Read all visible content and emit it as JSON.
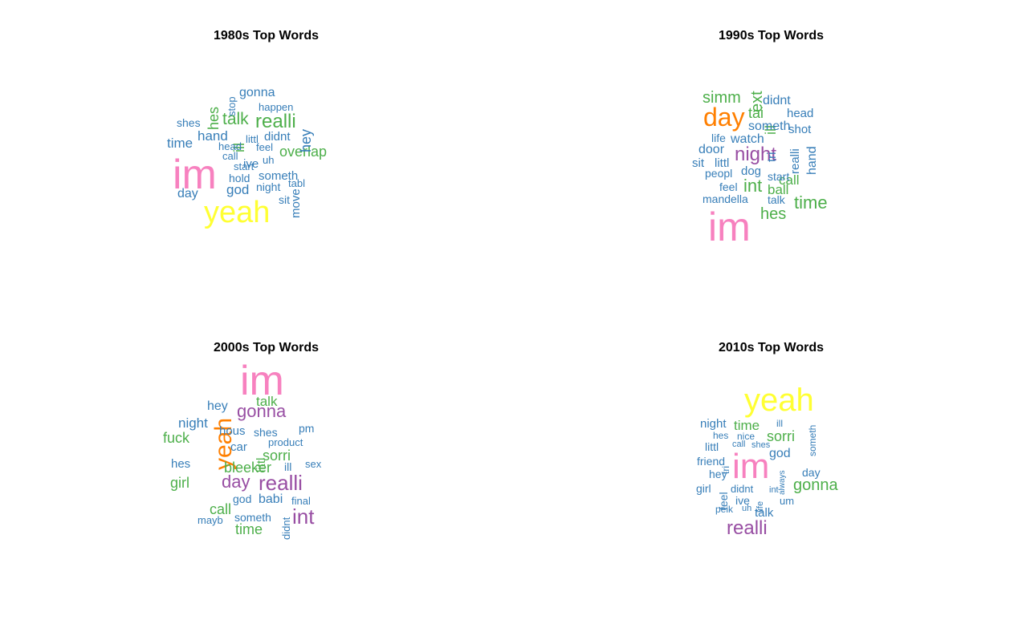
{
  "chart_data": [
    {
      "type": "wordcloud",
      "title": "1980s Top Words",
      "words": [
        {
          "text": "im",
          "freq": 10,
          "color": "#F781BF"
        },
        {
          "text": "yeah",
          "freq": 8,
          "color": "#FFFF33"
        },
        {
          "text": "realli",
          "freq": 5,
          "color": "#4DAF4A"
        },
        {
          "text": "talk",
          "freq": 4,
          "color": "#4DAF4A"
        },
        {
          "text": "overlap",
          "freq": 4,
          "color": "#4DAF4A"
        },
        {
          "text": "hand",
          "freq": 4,
          "color": "#377EB8"
        },
        {
          "text": "time",
          "freq": 4,
          "color": "#377EB8"
        },
        {
          "text": "hes",
          "freq": 4,
          "color": "#4DAF4A"
        },
        {
          "text": "ill",
          "freq": 4,
          "color": "#4DAF4A"
        },
        {
          "text": "hey",
          "freq": 4,
          "color": "#377EB8"
        },
        {
          "text": "god",
          "freq": 4,
          "color": "#377EB8"
        },
        {
          "text": "day",
          "freq": 3,
          "color": "#377EB8"
        },
        {
          "text": "gonna",
          "freq": 3,
          "color": "#377EB8"
        },
        {
          "text": "shes",
          "freq": 3,
          "color": "#377EB8"
        },
        {
          "text": "someth",
          "freq": 3,
          "color": "#377EB8"
        },
        {
          "text": "night",
          "freq": 3,
          "color": "#377EB8"
        },
        {
          "text": "sit",
          "freq": 3,
          "color": "#377EB8"
        },
        {
          "text": "move",
          "freq": 3,
          "color": "#377EB8"
        },
        {
          "text": "didnt",
          "freq": 3,
          "color": "#377EB8"
        },
        {
          "text": "ive",
          "freq": 3,
          "color": "#377EB8"
        },
        {
          "text": "hold",
          "freq": 3,
          "color": "#377EB8"
        },
        {
          "text": "happen",
          "freq": 2,
          "color": "#377EB8"
        },
        {
          "text": "stop",
          "freq": 2,
          "color": "#377EB8"
        },
        {
          "text": "littl",
          "freq": 2,
          "color": "#377EB8"
        },
        {
          "text": "head",
          "freq": 2,
          "color": "#377EB8"
        },
        {
          "text": "feel",
          "freq": 2,
          "color": "#377EB8"
        },
        {
          "text": "call",
          "freq": 2,
          "color": "#377EB8"
        },
        {
          "text": "uh",
          "freq": 2,
          "color": "#377EB8"
        },
        {
          "text": "start",
          "freq": 2,
          "color": "#377EB8"
        },
        {
          "text": "tabl",
          "freq": 2,
          "color": "#377EB8"
        }
      ]
    },
    {
      "type": "wordcloud",
      "title": "1990s Top Words",
      "words": [
        {
          "text": "im",
          "freq": 10,
          "color": "#F781BF"
        },
        {
          "text": "day",
          "freq": 6,
          "color": "#FF7F00"
        },
        {
          "text": "night",
          "freq": 5,
          "color": "#984EA3"
        },
        {
          "text": "int",
          "freq": 5,
          "color": "#4DAF4A"
        },
        {
          "text": "time",
          "freq": 4,
          "color": "#4DAF4A"
        },
        {
          "text": "hes",
          "freq": 4,
          "color": "#4DAF4A"
        },
        {
          "text": "simm",
          "freq": 4,
          "color": "#4DAF4A"
        },
        {
          "text": "ext",
          "freq": 4,
          "color": "#4DAF4A"
        },
        {
          "text": "tai",
          "freq": 3,
          "color": "#4DAF4A"
        },
        {
          "text": "ill",
          "freq": 4,
          "color": "#4DAF4A"
        },
        {
          "text": "ball",
          "freq": 3,
          "color": "#4DAF4A"
        },
        {
          "text": "call",
          "freq": 3,
          "color": "#4DAF4A"
        },
        {
          "text": "didnt",
          "freq": 3,
          "color": "#377EB8"
        },
        {
          "text": "head",
          "freq": 2,
          "color": "#377EB8"
        },
        {
          "text": "someth",
          "freq": 3,
          "color": "#377EB8"
        },
        {
          "text": "shot",
          "freq": 2,
          "color": "#377EB8"
        },
        {
          "text": "life",
          "freq": 2,
          "color": "#377EB8"
        },
        {
          "text": "watch",
          "freq": 3,
          "color": "#377EB8"
        },
        {
          "text": "tri",
          "freq": 3,
          "color": "#377EB8"
        },
        {
          "text": "realli",
          "freq": 3,
          "color": "#377EB8"
        },
        {
          "text": "hand",
          "freq": 3,
          "color": "#377EB8"
        },
        {
          "text": "door",
          "freq": 3,
          "color": "#377EB8"
        },
        {
          "text": "sit",
          "freq": 3,
          "color": "#377EB8"
        },
        {
          "text": "littl",
          "freq": 3,
          "color": "#377EB8"
        },
        {
          "text": "peopl",
          "freq": 2,
          "color": "#377EB8"
        },
        {
          "text": "dog",
          "freq": 3,
          "color": "#377EB8"
        },
        {
          "text": "start",
          "freq": 2,
          "color": "#377EB8"
        },
        {
          "text": "feel",
          "freq": 2,
          "color": "#377EB8"
        },
        {
          "text": "mandella",
          "freq": 2,
          "color": "#377EB8"
        },
        {
          "text": "talk",
          "freq": 2,
          "color": "#377EB8"
        }
      ]
    },
    {
      "type": "wordcloud",
      "title": "2000s Top Words",
      "words": [
        {
          "text": "im",
          "freq": 10,
          "color": "#F781BF"
        },
        {
          "text": "yeah",
          "freq": 7,
          "color": "#FF7F00"
        },
        {
          "text": "gonna",
          "freq": 5,
          "color": "#984EA3"
        },
        {
          "text": "realli",
          "freq": 6,
          "color": "#984EA3"
        },
        {
          "text": "day",
          "freq": 5,
          "color": "#984EA3"
        },
        {
          "text": "int",
          "freq": 6,
          "color": "#984EA3"
        },
        {
          "text": "talk",
          "freq": 4,
          "color": "#4DAF4A"
        },
        {
          "text": "fuck",
          "freq": 4,
          "color": "#4DAF4A"
        },
        {
          "text": "littl",
          "freq": 4,
          "color": "#4DAF4A"
        },
        {
          "text": "sorri",
          "freq": 4,
          "color": "#4DAF4A"
        },
        {
          "text": "bleeker",
          "freq": 4,
          "color": "#4DAF4A"
        },
        {
          "text": "girl",
          "freq": 4,
          "color": "#4DAF4A"
        },
        {
          "text": "call",
          "freq": 4,
          "color": "#4DAF4A"
        },
        {
          "text": "time",
          "freq": 4,
          "color": "#4DAF4A"
        },
        {
          "text": "hey",
          "freq": 3,
          "color": "#377EB8"
        },
        {
          "text": "night",
          "freq": 3,
          "color": "#377EB8"
        },
        {
          "text": "hous",
          "freq": 3,
          "color": "#377EB8"
        },
        {
          "text": "shes",
          "freq": 2,
          "color": "#377EB8"
        },
        {
          "text": "pm",
          "freq": 2,
          "color": "#377EB8"
        },
        {
          "text": "car",
          "freq": 3,
          "color": "#377EB8"
        },
        {
          "text": "product",
          "freq": 2,
          "color": "#377EB8"
        },
        {
          "text": "hes",
          "freq": 3,
          "color": "#377EB8"
        },
        {
          "text": "ill",
          "freq": 3,
          "color": "#377EB8"
        },
        {
          "text": "sex",
          "freq": 2,
          "color": "#377EB8"
        },
        {
          "text": "god",
          "freq": 2,
          "color": "#377EB8"
        },
        {
          "text": "babi",
          "freq": 3,
          "color": "#377EB8"
        },
        {
          "text": "final",
          "freq": 2,
          "color": "#377EB8"
        },
        {
          "text": "mayb",
          "freq": 2,
          "color": "#377EB8"
        },
        {
          "text": "someth",
          "freq": 2,
          "color": "#377EB8"
        },
        {
          "text": "didnt",
          "freq": 2,
          "color": "#377EB8"
        }
      ]
    },
    {
      "type": "wordcloud",
      "title": "2010s Top Words",
      "words": [
        {
          "text": "yeah",
          "freq": 10,
          "color": "#FFFF33"
        },
        {
          "text": "im",
          "freq": 10,
          "color": "#F781BF"
        },
        {
          "text": "realli",
          "freq": 5,
          "color": "#984EA3"
        },
        {
          "text": "gonna",
          "freq": 4,
          "color": "#4DAF4A"
        },
        {
          "text": "sorri",
          "freq": 4,
          "color": "#4DAF4A"
        },
        {
          "text": "time",
          "freq": 4,
          "color": "#4DAF4A"
        },
        {
          "text": "night",
          "freq": 3,
          "color": "#377EB8"
        },
        {
          "text": "ill",
          "freq": 2,
          "color": "#377EB8"
        },
        {
          "text": "hes",
          "freq": 2,
          "color": "#377EB8"
        },
        {
          "text": "nice",
          "freq": 2,
          "color": "#377EB8"
        },
        {
          "text": "littl",
          "freq": 3,
          "color": "#377EB8"
        },
        {
          "text": "tri",
          "freq": 2,
          "color": "#377EB8"
        },
        {
          "text": "call",
          "freq": 2,
          "color": "#377EB8"
        },
        {
          "text": "shes",
          "freq": 2,
          "color": "#377EB8"
        },
        {
          "text": "god",
          "freq": 3,
          "color": "#377EB8"
        },
        {
          "text": "someth",
          "freq": 2,
          "color": "#377EB8"
        },
        {
          "text": "friend",
          "freq": 3,
          "color": "#377EB8"
        },
        {
          "text": "always",
          "freq": 2,
          "color": "#377EB8"
        },
        {
          "text": "day",
          "freq": 3,
          "color": "#377EB8"
        },
        {
          "text": "hey",
          "freq": 3,
          "color": "#377EB8"
        },
        {
          "text": "girl",
          "freq": 3,
          "color": "#377EB8"
        },
        {
          "text": "feel",
          "freq": 3,
          "color": "#377EB8"
        },
        {
          "text": "didnt",
          "freq": 2,
          "color": "#377EB8"
        },
        {
          "text": "life",
          "freq": 2,
          "color": "#377EB8"
        },
        {
          "text": "int",
          "freq": 2,
          "color": "#377EB8"
        },
        {
          "text": "ive",
          "freq": 3,
          "color": "#377EB8"
        },
        {
          "text": "um",
          "freq": 2,
          "color": "#377EB8"
        },
        {
          "text": "peik",
          "freq": 2,
          "color": "#377EB8"
        },
        {
          "text": "uh",
          "freq": 2,
          "color": "#377EB8"
        },
        {
          "text": "talk",
          "freq": 3,
          "color": "#377EB8"
        }
      ]
    }
  ]
}
